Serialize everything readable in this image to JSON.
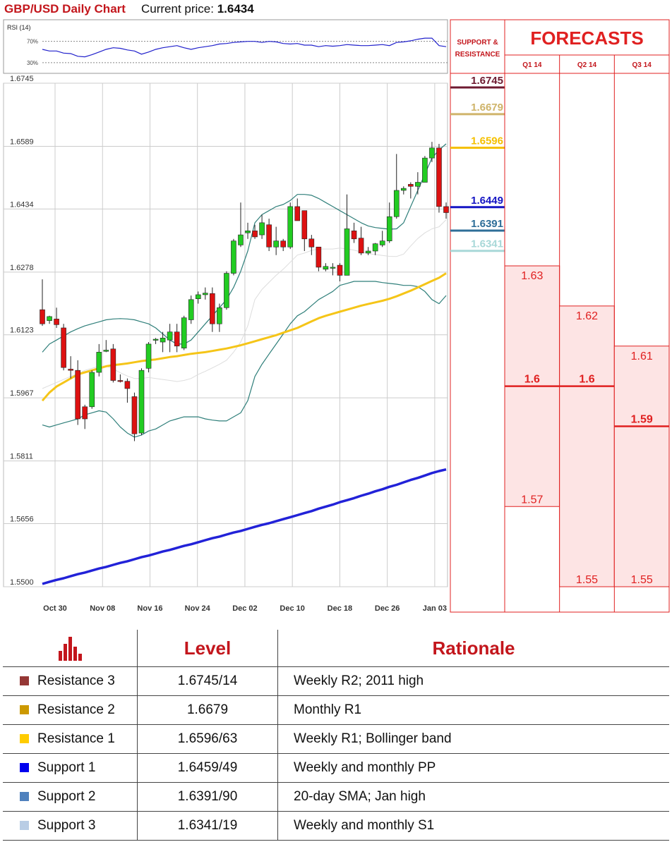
{
  "header": {
    "title": "GBP/USD Daily Chart",
    "price_label": "Current price:",
    "price_value": "1.6434"
  },
  "chart_data": {
    "type": "candlestick",
    "instrument": "GBP/USD",
    "x_labels": [
      "Oct 30",
      "Nov 08",
      "Nov 16",
      "Nov 24",
      "Dec 02",
      "Dec 10",
      "Dec 18",
      "Dec 26",
      "Jan 03"
    ],
    "y_ticks": [
      1.6745,
      1.6589,
      1.6434,
      1.6278,
      1.6123,
      1.5967,
      1.5811,
      1.5656,
      1.55
    ],
    "y_range": [
      1.55,
      1.6745
    ],
    "grid": true,
    "candles": [
      {
        "o": 1.6185,
        "h": 1.626,
        "l": 1.6145,
        "c": 1.615
      },
      {
        "o": 1.6158,
        "h": 1.617,
        "l": 1.615,
        "c": 1.6168
      },
      {
        "o": 1.6162,
        "h": 1.619,
        "l": 1.614,
        "c": 1.6148
      },
      {
        "o": 1.614,
        "h": 1.615,
        "l": 1.6035,
        "c": 1.6042
      },
      {
        "o": 1.6038,
        "h": 1.607,
        "l": 1.6015,
        "c": 1.6035
      },
      {
        "o": 1.6035,
        "h": 1.606,
        "l": 1.59,
        "c": 1.5915
      },
      {
        "o": 1.5945,
        "h": 1.595,
        "l": 1.589,
        "c": 1.5915
      },
      {
        "o": 1.5945,
        "h": 1.6035,
        "l": 1.594,
        "c": 1.603
      },
      {
        "o": 1.603,
        "h": 1.61,
        "l": 1.602,
        "c": 1.608
      },
      {
        "o": 1.6082,
        "h": 1.611,
        "l": 1.608,
        "c": 1.6085
      },
      {
        "o": 1.6088,
        "h": 1.61,
        "l": 1.6005,
        "c": 1.601
      },
      {
        "o": 1.601,
        "h": 1.6025,
        "l": 1.6005,
        "c": 1.6008
      },
      {
        "o": 1.6008,
        "h": 1.6015,
        "l": 1.5955,
        "c": 1.599
      },
      {
        "o": 1.597,
        "h": 1.598,
        "l": 1.586,
        "c": 1.5878
      },
      {
        "o": 1.588,
        "h": 1.604,
        "l": 1.5875,
        "c": 1.6035
      },
      {
        "o": 1.604,
        "h": 1.6105,
        "l": 1.603,
        "c": 1.61
      },
      {
        "o": 1.611,
        "h": 1.6115,
        "l": 1.61,
        "c": 1.6112
      },
      {
        "o": 1.6105,
        "h": 1.613,
        "l": 1.608,
        "c": 1.6115
      },
      {
        "o": 1.611,
        "h": 1.615,
        "l": 1.608,
        "c": 1.613
      },
      {
        "o": 1.613,
        "h": 1.615,
        "l": 1.608,
        "c": 1.6095
      },
      {
        "o": 1.609,
        "h": 1.617,
        "l": 1.6085,
        "c": 1.6165
      },
      {
        "o": 1.616,
        "h": 1.622,
        "l": 1.615,
        "c": 1.621
      },
      {
        "o": 1.6212,
        "h": 1.623,
        "l": 1.62,
        "c": 1.6222
      },
      {
        "o": 1.6222,
        "h": 1.624,
        "l": 1.621,
        "c": 1.6226
      },
      {
        "o": 1.6225,
        "h": 1.624,
        "l": 1.613,
        "c": 1.615
      },
      {
        "o": 1.615,
        "h": 1.62,
        "l": 1.613,
        "c": 1.619
      },
      {
        "o": 1.619,
        "h": 1.628,
        "l": 1.6185,
        "c": 1.6275
      },
      {
        "o": 1.6275,
        "h": 1.636,
        "l": 1.627,
        "c": 1.6355
      },
      {
        "o": 1.6345,
        "h": 1.645,
        "l": 1.634,
        "c": 1.637
      },
      {
        "o": 1.6375,
        "h": 1.64,
        "l": 1.636,
        "c": 1.638
      },
      {
        "o": 1.638,
        "h": 1.6395,
        "l": 1.636,
        "c": 1.6365
      },
      {
        "o": 1.637,
        "h": 1.642,
        "l": 1.636,
        "c": 1.64
      },
      {
        "o": 1.6395,
        "h": 1.641,
        "l": 1.633,
        "c": 1.634
      },
      {
        "o": 1.634,
        "h": 1.639,
        "l": 1.632,
        "c": 1.6355
      },
      {
        "o": 1.6355,
        "h": 1.636,
        "l": 1.633,
        "c": 1.634
      },
      {
        "o": 1.634,
        "h": 1.645,
        "l": 1.6335,
        "c": 1.644
      },
      {
        "o": 1.644,
        "h": 1.646,
        "l": 1.6405,
        "c": 1.6405
      },
      {
        "o": 1.643,
        "h": 1.643,
        "l": 1.633,
        "c": 1.636
      },
      {
        "o": 1.636,
        "h": 1.637,
        "l": 1.632,
        "c": 1.634
      },
      {
        "o": 1.634,
        "h": 1.634,
        "l": 1.628,
        "c": 1.629
      },
      {
        "o": 1.6285,
        "h": 1.63,
        "l": 1.628,
        "c": 1.6292
      },
      {
        "o": 1.629,
        "h": 1.63,
        "l": 1.627,
        "c": 1.629
      },
      {
        "o": 1.6295,
        "h": 1.63,
        "l": 1.6255,
        "c": 1.627
      },
      {
        "o": 1.627,
        "h": 1.647,
        "l": 1.627,
        "c": 1.6385
      },
      {
        "o": 1.638,
        "h": 1.64,
        "l": 1.635,
        "c": 1.636
      },
      {
        "o": 1.6362,
        "h": 1.639,
        "l": 1.632,
        "c": 1.6325
      },
      {
        "o": 1.6325,
        "h": 1.634,
        "l": 1.632,
        "c": 1.633
      },
      {
        "o": 1.633,
        "h": 1.635,
        "l": 1.632,
        "c": 1.6348
      },
      {
        "o": 1.6345,
        "h": 1.638,
        "l": 1.634,
        "c": 1.6355
      },
      {
        "o": 1.6355,
        "h": 1.645,
        "l": 1.635,
        "c": 1.6415
      },
      {
        "o": 1.6415,
        "h": 1.657,
        "l": 1.641,
        "c": 1.648
      },
      {
        "o": 1.648,
        "h": 1.649,
        "l": 1.647,
        "c": 1.6485
      },
      {
        "o": 1.6495,
        "h": 1.65,
        "l": 1.646,
        "c": 1.649
      },
      {
        "o": 1.649,
        "h": 1.6525,
        "l": 1.647,
        "c": 1.65
      },
      {
        "o": 1.65,
        "h": 1.6565,
        "l": 1.65,
        "c": 1.656
      },
      {
        "o": 1.656,
        "h": 1.66,
        "l": 1.655,
        "c": 1.6585
      },
      {
        "o": 1.6585,
        "h": 1.6595,
        "l": 1.6425,
        "c": 1.644
      },
      {
        "o": 1.644,
        "h": 1.645,
        "l": 1.641,
        "c": 1.6425
      }
    ],
    "sma_long": [
      1.5507,
      1.5512,
      1.5517,
      1.5521,
      1.5526,
      1.5531,
      1.5535,
      1.554,
      1.5545,
      1.5549,
      1.5554,
      1.5559,
      1.5563,
      1.5568,
      1.5573,
      1.5577,
      1.5582,
      1.5587,
      1.5591,
      1.5596,
      1.5601,
      1.5605,
      1.561,
      1.5615,
      1.562,
      1.5624,
      1.5629,
      1.5634,
      1.5638,
      1.5643,
      1.5648,
      1.5653,
      1.5657,
      1.5662,
      1.5667,
      1.5672,
      1.5677,
      1.5682,
      1.5687,
      1.5693,
      1.5698,
      1.5703,
      1.5709,
      1.5714,
      1.5719,
      1.5725,
      1.573,
      1.5736,
      1.5741,
      1.5747,
      1.5752,
      1.5758,
      1.5764,
      1.5769,
      1.5775,
      1.5781,
      1.5786,
      1.579
    ],
    "sma_mid": [
      1.596,
      1.598,
      1.5995,
      1.6005,
      1.6015,
      1.6025,
      1.603,
      1.6035,
      1.604,
      1.6045,
      1.6048,
      1.605,
      1.6052,
      1.6055,
      1.6058,
      1.606,
      1.6062,
      1.6065,
      1.6068,
      1.607,
      1.6073,
      1.6076,
      1.6078,
      1.608,
      1.6083,
      1.6086,
      1.6089,
      1.6093,
      1.6097,
      1.6102,
      1.6107,
      1.6112,
      1.6117,
      1.6122,
      1.6128,
      1.6134,
      1.614,
      1.6148,
      1.6156,
      1.6164,
      1.617,
      1.6175,
      1.618,
      1.6185,
      1.619,
      1.6195,
      1.6199,
      1.6203,
      1.6207,
      1.6212,
      1.6218,
      1.6225,
      1.6232,
      1.624,
      1.6248,
      1.6256,
      1.6264,
      1.6275
    ],
    "bb_upper": [
      1.608,
      1.61,
      1.611,
      1.612,
      1.613,
      1.6138,
      1.6145,
      1.615,
      1.6155,
      1.616,
      1.6162,
      1.6163,
      1.6162,
      1.616,
      1.6155,
      1.615,
      1.614,
      1.6125,
      1.611,
      1.61,
      1.61,
      1.611,
      1.613,
      1.615,
      1.617,
      1.619,
      1.621,
      1.624,
      1.628,
      1.633,
      1.64,
      1.642,
      1.643,
      1.644,
      1.6445,
      1.6455,
      1.647,
      1.647,
      1.6468,
      1.646,
      1.645,
      1.644,
      1.643,
      1.642,
      1.641,
      1.64,
      1.6392,
      1.6388,
      1.6386,
      1.6384,
      1.6385,
      1.64,
      1.644,
      1.648,
      1.652,
      1.656,
      1.658,
      1.6595
    ],
    "bb_lower": [
      1.59,
      1.5895,
      1.59,
      1.5905,
      1.591,
      1.5915,
      1.5925,
      1.593,
      1.5935,
      1.5932,
      1.5915,
      1.5895,
      1.588,
      1.587,
      1.5875,
      1.5885,
      1.589,
      1.59,
      1.591,
      1.5915,
      1.592,
      1.592,
      1.592,
      1.5915,
      1.5912,
      1.591,
      1.591,
      1.592,
      1.593,
      1.596,
      1.602,
      1.605,
      1.6075,
      1.61,
      1.6125,
      1.615,
      1.617,
      1.618,
      1.6195,
      1.621,
      1.622,
      1.623,
      1.6245,
      1.625,
      1.6255,
      1.6255,
      1.6255,
      1.6255,
      1.6252,
      1.625,
      1.6248,
      1.6245,
      1.6245,
      1.6242,
      1.623,
      1.621,
      1.62,
      1.622
    ]
  },
  "rsi": {
    "label": "RSI (14)",
    "level_high": "70%",
    "level_low": "30%",
    "values": [
      55,
      52,
      52,
      48,
      47,
      42,
      41,
      45,
      50,
      55,
      58,
      57,
      54,
      52,
      46,
      50,
      55,
      58,
      60,
      62,
      58,
      55,
      58,
      60,
      62,
      65,
      66,
      68,
      69,
      70,
      70,
      68,
      70,
      69,
      66,
      65,
      66,
      63,
      63,
      60,
      62,
      61,
      62,
      64,
      63,
      62,
      62,
      63,
      64,
      62,
      68,
      69,
      71,
      74,
      76,
      76,
      62,
      60
    ]
  },
  "sr": {
    "header_line1": "SUPPORT &",
    "header_line2": "RESISTANCE",
    "levels": [
      {
        "label": "1.6745",
        "value": 1.6745,
        "color": "#6e1a30"
      },
      {
        "label": "1.6679",
        "value": 1.6679,
        "color": "#cfb46a"
      },
      {
        "label": "1.6596",
        "value": 1.6596,
        "color": "#f5c000"
      },
      {
        "label": "1.6449",
        "value": 1.6449,
        "color": "#1515c4"
      },
      {
        "label": "1.6391",
        "value": 1.6391,
        "color": "#2e6e98"
      },
      {
        "label": "1.6341",
        "value": 1.6341,
        "color": "#a8d8d8"
      }
    ]
  },
  "forecasts": {
    "title": "FORECASTS",
    "columns": [
      {
        "label": "Q1 14",
        "high": 1.63,
        "high_label": "1.63",
        "median": 1.6,
        "median_label": "1.6",
        "low": 1.57,
        "low_label": "1.57"
      },
      {
        "label": "Q2 14",
        "high": 1.62,
        "high_label": "1.62",
        "median": 1.6,
        "median_label": "1.6",
        "low": 1.55,
        "low_label": "1.55"
      },
      {
        "label": "Q3 14",
        "high": 1.61,
        "high_label": "1.61",
        "median": 1.59,
        "median_label": "1.59",
        "low": 1.55,
        "low_label": "1.55"
      }
    ]
  },
  "table": {
    "headers": {
      "level": "Level",
      "rationale": "Rationale"
    },
    "rows": [
      {
        "name": "Resistance 3",
        "level": "1.6745/14",
        "rationale": "Weekly R2; 2011 high",
        "color": "#953735"
      },
      {
        "name": "Resistance 2",
        "level": "1.6679",
        "rationale": "Monthly R1",
        "color": "#cc9900"
      },
      {
        "name": "Resistance 1",
        "level": "1.6596/63",
        "rationale": "Weekly R1; Bollinger band",
        "color": "#ffcc00"
      },
      {
        "name": "Support 1",
        "level": "1.6459/49",
        "rationale": "Weekly and monthly PP",
        "color": "#0000ee"
      },
      {
        "name": "Support 2",
        "level": "1.6391/90",
        "rationale": "20-day SMA; Jan high",
        "color": "#4f81bd"
      },
      {
        "name": "Support 3",
        "level": "1.6341/19",
        "rationale": "Weekly and monthly S1",
        "color": "#b9cde5"
      }
    ]
  }
}
